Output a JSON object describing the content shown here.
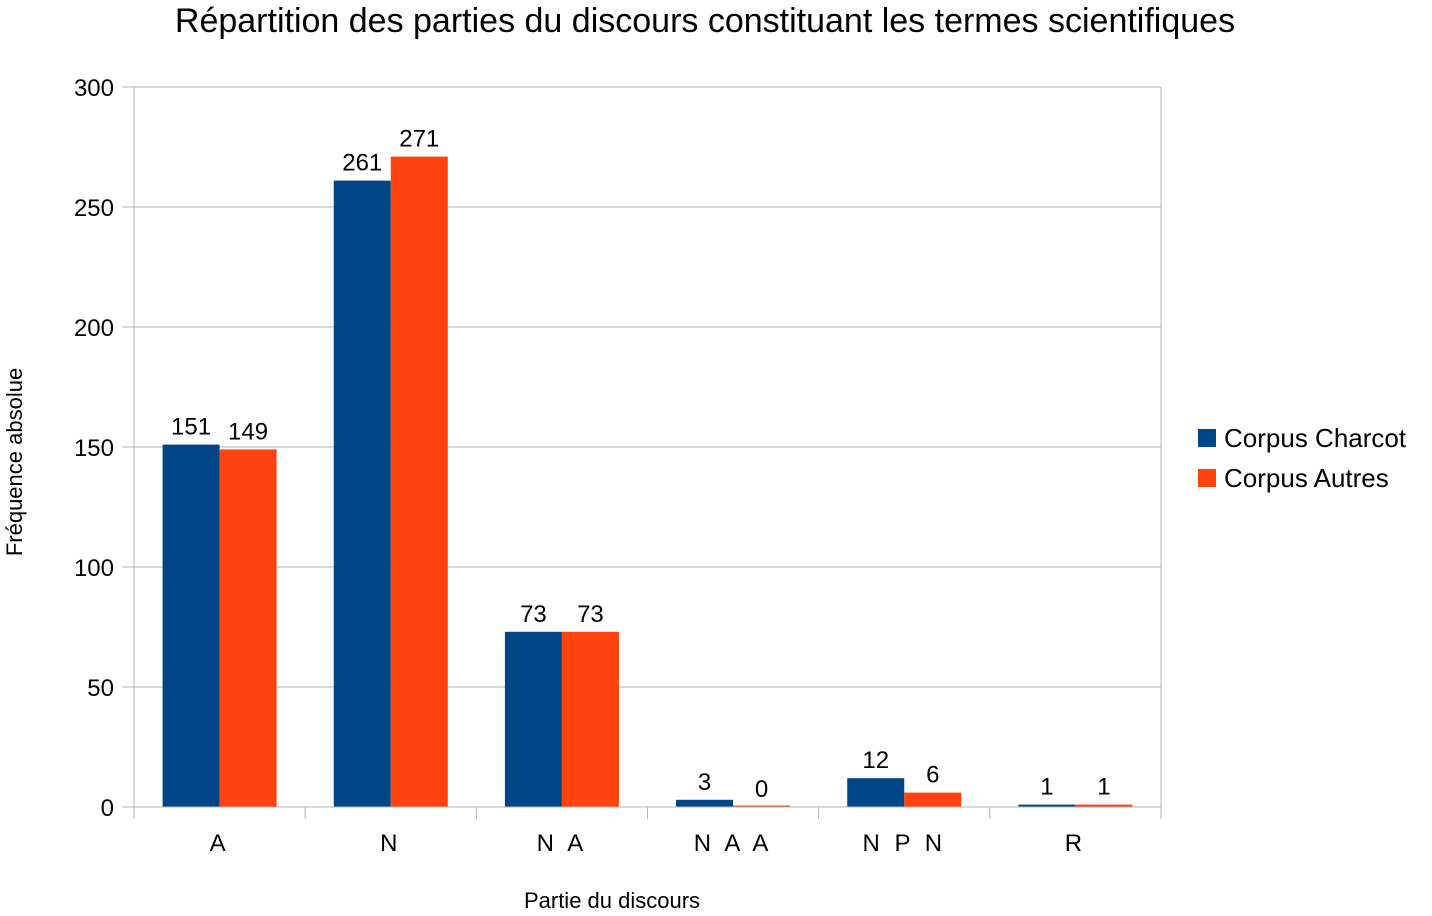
{
  "chart_data": {
    "type": "bar",
    "title": "Répartition des parties du discours constituant les termes scientifiques",
    "xlabel": "Partie du discours",
    "ylabel": "Fréquence absolue",
    "categories": [
      "A",
      "N",
      "N A",
      "N A A",
      "N P N",
      "R"
    ],
    "series": [
      {
        "name": "Corpus Charcot",
        "color": "#004586",
        "values": [
          151,
          261,
          73,
          3,
          12,
          1
        ]
      },
      {
        "name": "Corpus Autres",
        "color": "#ff420e",
        "values": [
          149,
          271,
          73,
          0,
          6,
          1
        ]
      }
    ],
    "ylim": [
      0,
      300
    ],
    "yticks": [
      0,
      50,
      100,
      150,
      200,
      250,
      300
    ],
    "grid": true,
    "legend_position": "right",
    "data_labels": true
  }
}
